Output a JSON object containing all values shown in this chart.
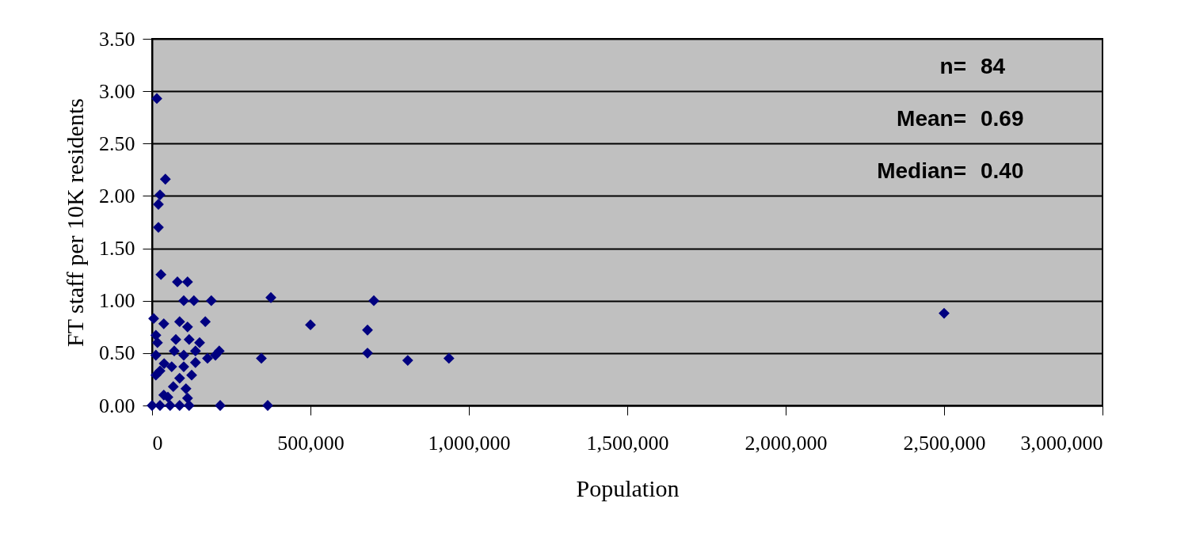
{
  "chart_data": {
    "type": "scatter",
    "xlabel": "Population",
    "ylabel": "FT staff per 10K residents",
    "xlim": [
      0,
      3000000
    ],
    "xticks": [
      {
        "value": 0,
        "label": "0"
      },
      {
        "value": 500000,
        "label": "500,000"
      },
      {
        "value": 1000000,
        "label": "1,000,000"
      },
      {
        "value": 1500000,
        "label": "1,500,000"
      },
      {
        "value": 2000000,
        "label": "2,000,000"
      },
      {
        "value": 2500000,
        "label": "2,500,000"
      },
      {
        "value": 3000000,
        "label": "3,000,000"
      }
    ],
    "ylim": [
      0,
      3.5
    ],
    "yticks": [
      {
        "value": 0,
        "label": "0.00"
      },
      {
        "value": 0.5,
        "label": "0.50"
      },
      {
        "value": 1,
        "label": "1.00"
      },
      {
        "value": 1.5,
        "label": "1.50"
      },
      {
        "value": 2,
        "label": "2.00"
      },
      {
        "value": 2.5,
        "label": "2.50"
      },
      {
        "value": 3,
        "label": "3.00"
      },
      {
        "value": 3.5,
        "label": "3.50"
      }
    ],
    "grid": "y",
    "marker": "diamond",
    "annotations": [
      "n=   84",
      "Mean=   0.69",
      "Median=   0.40"
    ],
    "series": [
      {
        "color": "#000080",
        "x": [
          15000,
          42000,
          25000,
          20000,
          20000,
          28000,
          80000,
          112000,
          132000,
          100000,
          187000,
          375000,
          700000,
          500000,
          680000,
          680000,
          807000,
          937000,
          345000,
          365000,
          215000,
          2500000,
          5000,
          168000,
          212000,
          12000,
          37000,
          87000,
          112000,
          75000,
          117000,
          150000,
          17000,
          12000,
          38000,
          25000,
          62000,
          100000,
          137000,
          175000,
          200000,
          87000,
          125000,
          67000,
          107000,
          37000,
          112000,
          0,
          25000,
          57000,
          87000,
          117000,
          50000,
          12000,
          70000,
          137000,
          100000
        ],
        "values": [
          2.93,
          2.16,
          2.01,
          1.92,
          1.7,
          1.25,
          1.18,
          1.18,
          1.0,
          1.0,
          1.0,
          1.03,
          1.0,
          0.77,
          0.72,
          0.5,
          0.43,
          0.45,
          0.45,
          0,
          0,
          0.88,
          0.83,
          0.8,
          0.52,
          0.67,
          0.78,
          0.8,
          0.75,
          0.63,
          0.63,
          0.6,
          0.6,
          0.48,
          0.4,
          0.33,
          0.37,
          0.37,
          0.41,
          0.45,
          0.48,
          0.26,
          0.29,
          0.18,
          0.16,
          0.1,
          0.07,
          0,
          0,
          0,
          0,
          0,
          0.08,
          0.29,
          0.52,
          0.52,
          0.48
        ]
      }
    ]
  }
}
